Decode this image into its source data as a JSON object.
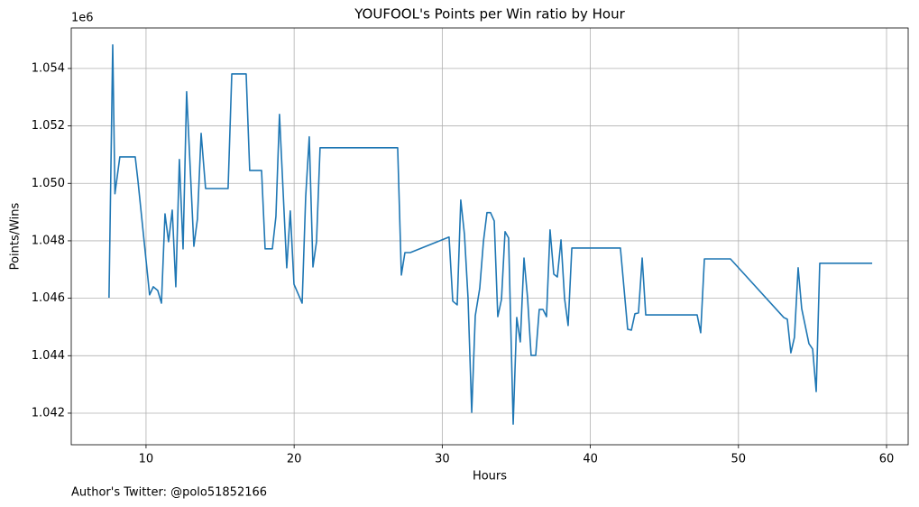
{
  "chart_data": {
    "type": "line",
    "title": "YOUFOOL's Points per Win ratio by Hour",
    "x_label": "Hours",
    "y_label": "Points/Wins",
    "y_offset_label": "1e6",
    "footnote": "Author's Twitter: @polo51852166",
    "color": "#1f77b4",
    "grid": true,
    "xlim": [
      4.95,
      61.46
    ],
    "ylim": [
      1040900,
      1055410
    ],
    "xticks": [
      10,
      20,
      30,
      40,
      50,
      60
    ],
    "yticks": [
      {
        "value": 1042000,
        "label": "1.042"
      },
      {
        "value": 1044000,
        "label": "1.044"
      },
      {
        "value": 1046000,
        "label": "1.046"
      },
      {
        "value": 1048000,
        "label": "1.048"
      },
      {
        "value": 1050000,
        "label": "1.050"
      },
      {
        "value": 1052000,
        "label": "1.052"
      },
      {
        "value": 1054000,
        "label": "1.054"
      }
    ],
    "x": [
      7.5,
      7.75,
      7.9,
      8.23,
      9.27,
      9.45,
      10.24,
      10.49,
      10.79,
      11.04,
      11.28,
      11.52,
      11.77,
      12.01,
      12.25,
      12.5,
      12.74,
      13.23,
      13.47,
      13.72,
      14.02,
      15.54,
      15.79,
      16.76,
      17.0,
      17.8,
      18.04,
      18.53,
      18.77,
      19.01,
      19.5,
      19.74,
      19.99,
      20.54,
      20.78,
      21.02,
      21.27,
      21.51,
      21.75,
      26.99,
      27.24,
      27.48,
      27.84,
      30.46,
      30.71,
      31.01,
      31.25,
      31.5,
      31.74,
      31.99,
      32.23,
      32.53,
      32.78,
      33.02,
      33.26,
      33.51,
      33.75,
      34.0,
      34.24,
      34.48,
      34.79,
      35.03,
      35.27,
      35.52,
      35.76,
      36.0,
      36.31,
      36.55,
      36.8,
      37.04,
      37.28,
      37.53,
      37.77,
      38.02,
      38.26,
      38.5,
      38.75,
      42.03,
      42.52,
      42.77,
      43.01,
      43.25,
      43.5,
      43.74,
      47.21,
      47.45,
      47.7,
      49.46,
      53.06,
      53.3,
      53.54,
      53.78,
      54.03,
      54.27,
      54.76,
      55.01,
      55.25,
      55.49,
      59.03
    ],
    "values": [
      1046020,
      1054820,
      1049640,
      1050920,
      1050920,
      1050110,
      1046120,
      1046400,
      1046270,
      1045830,
      1048940,
      1047970,
      1049070,
      1046400,
      1050830,
      1047720,
      1053190,
      1047810,
      1048760,
      1051740,
      1049820,
      1049820,
      1053810,
      1053810,
      1050450,
      1050450,
      1047720,
      1047720,
      1048850,
      1052400,
      1047060,
      1049040,
      1046490,
      1045830,
      1049540,
      1051620,
      1047090,
      1047970,
      1051240,
      1051240,
      1046810,
      1047590,
      1047590,
      1048130,
      1045900,
      1045770,
      1049420,
      1048220,
      1046020,
      1042030,
      1045390,
      1046340,
      1047970,
      1048980,
      1048980,
      1048690,
      1045360,
      1045960,
      1048320,
      1048100,
      1041620,
      1045330,
      1044480,
      1047400,
      1046020,
      1044010,
      1044010,
      1045610,
      1045610,
      1045360,
      1048380,
      1046840,
      1046740,
      1048030,
      1045990,
      1045050,
      1047750,
      1047750,
      1044920,
      1044890,
      1045460,
      1045490,
      1047400,
      1045420,
      1045420,
      1044800,
      1047370,
      1047370,
      1045330,
      1045270,
      1044100,
      1044640,
      1047060,
      1045640,
      1044420,
      1044230,
      1042750,
      1047220,
      1047220
    ]
  }
}
